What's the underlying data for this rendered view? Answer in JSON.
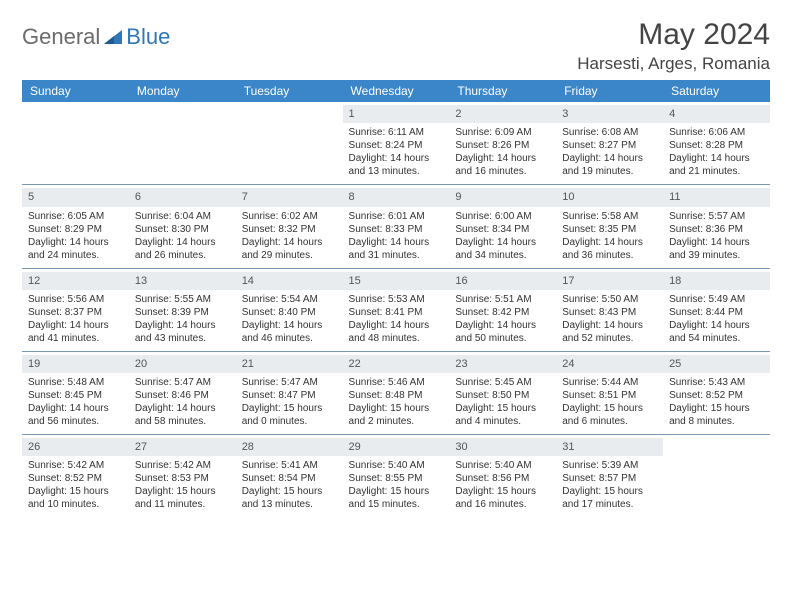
{
  "brand": {
    "general": "General",
    "blue": "Blue"
  },
  "title": "May 2024",
  "location": "Harsesti, Arges, Romania",
  "colors": {
    "header_bg": "#3a86c8",
    "header_text": "#ffffff",
    "daynum_bg": "#e9ecef",
    "row_border": "#7a98b3",
    "brand_blue": "#2f77b6",
    "brand_gray": "#6b6b6b",
    "text": "#333333"
  },
  "weekdays": [
    "Sunday",
    "Monday",
    "Tuesday",
    "Wednesday",
    "Thursday",
    "Friday",
    "Saturday"
  ],
  "weeks": [
    [
      null,
      null,
      null,
      {
        "n": "1",
        "sunrise": "Sunrise: 6:11 AM",
        "sunset": "Sunset: 8:24 PM",
        "d1": "Daylight: 14 hours",
        "d2": "and 13 minutes."
      },
      {
        "n": "2",
        "sunrise": "Sunrise: 6:09 AM",
        "sunset": "Sunset: 8:26 PM",
        "d1": "Daylight: 14 hours",
        "d2": "and 16 minutes."
      },
      {
        "n": "3",
        "sunrise": "Sunrise: 6:08 AM",
        "sunset": "Sunset: 8:27 PM",
        "d1": "Daylight: 14 hours",
        "d2": "and 19 minutes."
      },
      {
        "n": "4",
        "sunrise": "Sunrise: 6:06 AM",
        "sunset": "Sunset: 8:28 PM",
        "d1": "Daylight: 14 hours",
        "d2": "and 21 minutes."
      }
    ],
    [
      {
        "n": "5",
        "sunrise": "Sunrise: 6:05 AM",
        "sunset": "Sunset: 8:29 PM",
        "d1": "Daylight: 14 hours",
        "d2": "and 24 minutes."
      },
      {
        "n": "6",
        "sunrise": "Sunrise: 6:04 AM",
        "sunset": "Sunset: 8:30 PM",
        "d1": "Daylight: 14 hours",
        "d2": "and 26 minutes."
      },
      {
        "n": "7",
        "sunrise": "Sunrise: 6:02 AM",
        "sunset": "Sunset: 8:32 PM",
        "d1": "Daylight: 14 hours",
        "d2": "and 29 minutes."
      },
      {
        "n": "8",
        "sunrise": "Sunrise: 6:01 AM",
        "sunset": "Sunset: 8:33 PM",
        "d1": "Daylight: 14 hours",
        "d2": "and 31 minutes."
      },
      {
        "n": "9",
        "sunrise": "Sunrise: 6:00 AM",
        "sunset": "Sunset: 8:34 PM",
        "d1": "Daylight: 14 hours",
        "d2": "and 34 minutes."
      },
      {
        "n": "10",
        "sunrise": "Sunrise: 5:58 AM",
        "sunset": "Sunset: 8:35 PM",
        "d1": "Daylight: 14 hours",
        "d2": "and 36 minutes."
      },
      {
        "n": "11",
        "sunrise": "Sunrise: 5:57 AM",
        "sunset": "Sunset: 8:36 PM",
        "d1": "Daylight: 14 hours",
        "d2": "and 39 minutes."
      }
    ],
    [
      {
        "n": "12",
        "sunrise": "Sunrise: 5:56 AM",
        "sunset": "Sunset: 8:37 PM",
        "d1": "Daylight: 14 hours",
        "d2": "and 41 minutes."
      },
      {
        "n": "13",
        "sunrise": "Sunrise: 5:55 AM",
        "sunset": "Sunset: 8:39 PM",
        "d1": "Daylight: 14 hours",
        "d2": "and 43 minutes."
      },
      {
        "n": "14",
        "sunrise": "Sunrise: 5:54 AM",
        "sunset": "Sunset: 8:40 PM",
        "d1": "Daylight: 14 hours",
        "d2": "and 46 minutes."
      },
      {
        "n": "15",
        "sunrise": "Sunrise: 5:53 AM",
        "sunset": "Sunset: 8:41 PM",
        "d1": "Daylight: 14 hours",
        "d2": "and 48 minutes."
      },
      {
        "n": "16",
        "sunrise": "Sunrise: 5:51 AM",
        "sunset": "Sunset: 8:42 PM",
        "d1": "Daylight: 14 hours",
        "d2": "and 50 minutes."
      },
      {
        "n": "17",
        "sunrise": "Sunrise: 5:50 AM",
        "sunset": "Sunset: 8:43 PM",
        "d1": "Daylight: 14 hours",
        "d2": "and 52 minutes."
      },
      {
        "n": "18",
        "sunrise": "Sunrise: 5:49 AM",
        "sunset": "Sunset: 8:44 PM",
        "d1": "Daylight: 14 hours",
        "d2": "and 54 minutes."
      }
    ],
    [
      {
        "n": "19",
        "sunrise": "Sunrise: 5:48 AM",
        "sunset": "Sunset: 8:45 PM",
        "d1": "Daylight: 14 hours",
        "d2": "and 56 minutes."
      },
      {
        "n": "20",
        "sunrise": "Sunrise: 5:47 AM",
        "sunset": "Sunset: 8:46 PM",
        "d1": "Daylight: 14 hours",
        "d2": "and 58 minutes."
      },
      {
        "n": "21",
        "sunrise": "Sunrise: 5:47 AM",
        "sunset": "Sunset: 8:47 PM",
        "d1": "Daylight: 15 hours",
        "d2": "and 0 minutes."
      },
      {
        "n": "22",
        "sunrise": "Sunrise: 5:46 AM",
        "sunset": "Sunset: 8:48 PM",
        "d1": "Daylight: 15 hours",
        "d2": "and 2 minutes."
      },
      {
        "n": "23",
        "sunrise": "Sunrise: 5:45 AM",
        "sunset": "Sunset: 8:50 PM",
        "d1": "Daylight: 15 hours",
        "d2": "and 4 minutes."
      },
      {
        "n": "24",
        "sunrise": "Sunrise: 5:44 AM",
        "sunset": "Sunset: 8:51 PM",
        "d1": "Daylight: 15 hours",
        "d2": "and 6 minutes."
      },
      {
        "n": "25",
        "sunrise": "Sunrise: 5:43 AM",
        "sunset": "Sunset: 8:52 PM",
        "d1": "Daylight: 15 hours",
        "d2": "and 8 minutes."
      }
    ],
    [
      {
        "n": "26",
        "sunrise": "Sunrise: 5:42 AM",
        "sunset": "Sunset: 8:52 PM",
        "d1": "Daylight: 15 hours",
        "d2": "and 10 minutes."
      },
      {
        "n": "27",
        "sunrise": "Sunrise: 5:42 AM",
        "sunset": "Sunset: 8:53 PM",
        "d1": "Daylight: 15 hours",
        "d2": "and 11 minutes."
      },
      {
        "n": "28",
        "sunrise": "Sunrise: 5:41 AM",
        "sunset": "Sunset: 8:54 PM",
        "d1": "Daylight: 15 hours",
        "d2": "and 13 minutes."
      },
      {
        "n": "29",
        "sunrise": "Sunrise: 5:40 AM",
        "sunset": "Sunset: 8:55 PM",
        "d1": "Daylight: 15 hours",
        "d2": "and 15 minutes."
      },
      {
        "n": "30",
        "sunrise": "Sunrise: 5:40 AM",
        "sunset": "Sunset: 8:56 PM",
        "d1": "Daylight: 15 hours",
        "d2": "and 16 minutes."
      },
      {
        "n": "31",
        "sunrise": "Sunrise: 5:39 AM",
        "sunset": "Sunset: 8:57 PM",
        "d1": "Daylight: 15 hours",
        "d2": "and 17 minutes."
      },
      null
    ]
  ]
}
